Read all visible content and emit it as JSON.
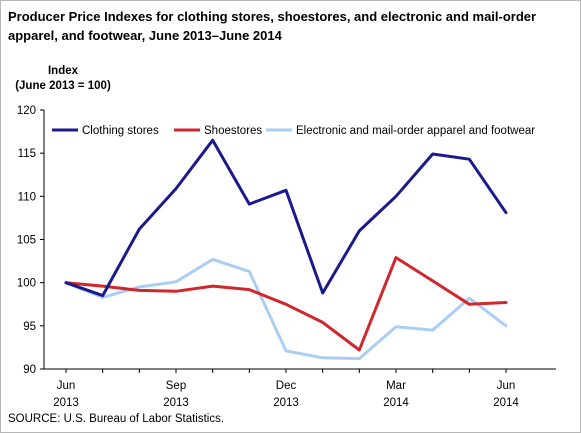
{
  "title": "Producer Price Indexes for clothing stores, shoestores, and electronic and mail-order apparel, and footwear, June 2013–June 2014",
  "ylabel_line1": "Index",
  "ylabel_line2": "(June 2013 = 100)",
  "source": "SOURCE: U.S. Bureau of Labor Statistics.",
  "chart_data": {
    "type": "line",
    "title": "Producer Price Indexes for clothing stores, shoestores, and electronic and mail-order apparel, and footwear, June 2013–June 2014",
    "ylabel": "Index (June 2013 = 100)",
    "xlabel": "",
    "x": [
      "Jun 2013",
      "Jul 2013",
      "Aug 2013",
      "Sep 2013",
      "Oct 2013",
      "Nov 2013",
      "Dec 2013",
      "Jan 2014",
      "Feb 2014",
      "Mar 2014",
      "Apr 2014",
      "May 2014",
      "Jun 2014"
    ],
    "x_tick_labels": [
      {
        "index": 0,
        "month": "Jun",
        "year": "2013"
      },
      {
        "index": 3,
        "month": "Sep",
        "year": "2013"
      },
      {
        "index": 6,
        "month": "Dec",
        "year": "2013"
      },
      {
        "index": 9,
        "month": "Mar",
        "year": "2014"
      },
      {
        "index": 12,
        "month": "Jun",
        "year": "2014"
      }
    ],
    "ylim": [
      90,
      120
    ],
    "yticks": [
      90,
      95,
      100,
      105,
      110,
      115,
      120
    ],
    "grid": false,
    "legend_position": "top",
    "series": [
      {
        "name": "Clothing stores",
        "color": "#1a1a8c",
        "values": [
          100.0,
          98.5,
          106.2,
          110.9,
          116.5,
          109.1,
          110.7,
          98.8,
          106.0,
          110.0,
          114.9,
          114.3,
          108.1
        ]
      },
      {
        "name": "Shoestores",
        "color": "#d0262d",
        "values": [
          100.0,
          99.6,
          99.1,
          99.0,
          99.6,
          99.2,
          97.5,
          95.4,
          92.2,
          102.9,
          100.2,
          97.5,
          97.7
        ]
      },
      {
        "name": "Electronic and mail-order apparel and footwear",
        "color": "#aacef3",
        "values": [
          100.0,
          98.3,
          99.5,
          100.1,
          102.7,
          101.3,
          92.1,
          91.3,
          91.2,
          94.9,
          94.5,
          98.2,
          95.0
        ]
      }
    ]
  }
}
